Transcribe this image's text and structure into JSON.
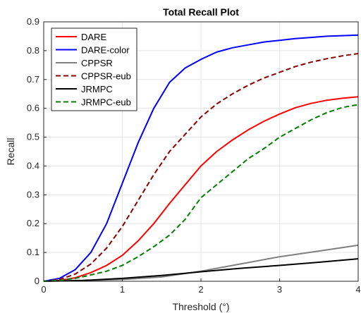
{
  "chart_data": {
    "type": "line",
    "title": "Total Recall Plot",
    "xlabel": "Threshold (°)",
    "ylabel": "Recall",
    "xlim": [
      0,
      4
    ],
    "ylim": [
      0,
      0.9
    ],
    "xticks": [
      0,
      1,
      2,
      3,
      4
    ],
    "yticks": [
      0,
      0.1,
      0.2,
      0.3,
      0.4,
      0.5,
      0.6,
      0.7,
      0.8,
      0.9
    ],
    "grid": true,
    "legend_position": "top-left",
    "series": [
      {
        "name": "DARE",
        "color": "#ff0000",
        "dash": "solid",
        "x": [
          0,
          0.2,
          0.4,
          0.6,
          0.8,
          1.0,
          1.2,
          1.4,
          1.6,
          1.8,
          2.0,
          2.2,
          2.4,
          2.6,
          2.8,
          3.0,
          3.2,
          3.4,
          3.6,
          3.8,
          4.0
        ],
        "y": [
          0,
          0.003,
          0.012,
          0.03,
          0.055,
          0.09,
          0.14,
          0.2,
          0.27,
          0.335,
          0.4,
          0.45,
          0.49,
          0.525,
          0.555,
          0.58,
          0.602,
          0.617,
          0.628,
          0.635,
          0.64
        ]
      },
      {
        "name": "DARE-color",
        "color": "#0000ff",
        "dash": "solid",
        "x": [
          0,
          0.2,
          0.4,
          0.6,
          0.8,
          1.0,
          1.2,
          1.4,
          1.6,
          1.8,
          2.0,
          2.2,
          2.4,
          2.6,
          2.8,
          3.0,
          3.2,
          3.4,
          3.6,
          3.8,
          4.0
        ],
        "y": [
          0,
          0.01,
          0.04,
          0.1,
          0.2,
          0.34,
          0.48,
          0.6,
          0.69,
          0.74,
          0.77,
          0.795,
          0.81,
          0.82,
          0.83,
          0.836,
          0.842,
          0.846,
          0.85,
          0.852,
          0.854
        ]
      },
      {
        "name": "CPPSR",
        "color": "#808080",
        "dash": "solid",
        "x": [
          0,
          0.5,
          1.0,
          1.5,
          2.0,
          2.5,
          3.0,
          3.5,
          4.0
        ],
        "y": [
          0,
          0.002,
          0.006,
          0.015,
          0.035,
          0.06,
          0.085,
          0.105,
          0.125
        ]
      },
      {
        "name": "CPPSR-eub",
        "color": "#8b0000",
        "dash": "dashed",
        "x": [
          0,
          0.2,
          0.4,
          0.6,
          0.8,
          1.0,
          1.2,
          1.4,
          1.6,
          1.8,
          2.0,
          2.2,
          2.4,
          2.6,
          2.8,
          3.0,
          3.2,
          3.4,
          3.6,
          3.8,
          4.0
        ],
        "y": [
          0,
          0.006,
          0.025,
          0.06,
          0.115,
          0.19,
          0.28,
          0.37,
          0.45,
          0.51,
          0.57,
          0.615,
          0.65,
          0.68,
          0.705,
          0.725,
          0.745,
          0.76,
          0.772,
          0.782,
          0.79
        ]
      },
      {
        "name": "JRMPC",
        "color": "#000000",
        "dash": "solid",
        "x": [
          0,
          0.5,
          1.0,
          1.5,
          2.0,
          2.5,
          3.0,
          3.5,
          4.0
        ],
        "y": [
          0,
          0.003,
          0.01,
          0.02,
          0.033,
          0.045,
          0.055,
          0.066,
          0.078
        ]
      },
      {
        "name": "JRMPC-eub",
        "color": "#008000",
        "dash": "dashed",
        "x": [
          0,
          0.2,
          0.4,
          0.6,
          0.8,
          1.0,
          1.2,
          1.4,
          1.6,
          1.8,
          2.0,
          2.2,
          2.4,
          2.6,
          2.8,
          3.0,
          3.2,
          3.4,
          3.6,
          3.8,
          4.0
        ],
        "y": [
          0,
          0.003,
          0.01,
          0.022,
          0.035,
          0.055,
          0.085,
          0.12,
          0.16,
          0.215,
          0.29,
          0.335,
          0.38,
          0.425,
          0.46,
          0.5,
          0.53,
          0.56,
          0.585,
          0.603,
          0.613
        ]
      }
    ]
  }
}
